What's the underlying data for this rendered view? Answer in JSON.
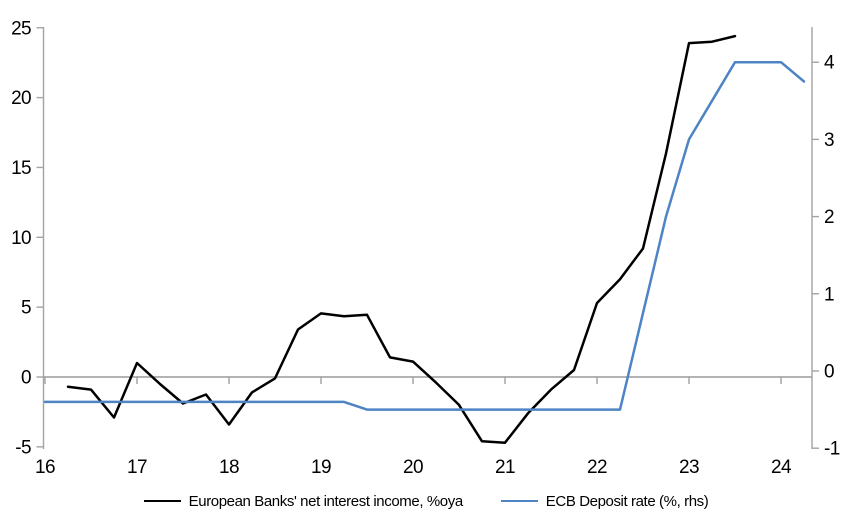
{
  "chart_data": {
    "type": "line",
    "title": "",
    "xlabel": "",
    "ylabel_left": "",
    "ylabel_right": "",
    "grid": "zero-line-only",
    "legend_position": "bottom-center",
    "background_color": "#ffffff",
    "x_axis": {
      "ticks": [
        16,
        17,
        18,
        19,
        20,
        21,
        22,
        23,
        24
      ],
      "labels": [
        "16",
        "17",
        "18",
        "19",
        "20",
        "21",
        "22",
        "23",
        "24"
      ],
      "range": [
        16,
        24.34
      ]
    },
    "left_axis": {
      "ticks": [
        -5,
        0,
        5,
        10,
        15,
        20,
        25
      ],
      "labels": [
        "-5",
        "0",
        "5",
        "10",
        "15",
        "20",
        "25"
      ],
      "range": [
        -5.15,
        25.05
      ]
    },
    "right_axis": {
      "ticks": [
        -1,
        0,
        1,
        2,
        3,
        4
      ],
      "labels": [
        "-1",
        "0",
        "1",
        "2",
        "3",
        "4"
      ],
      "range": [
        -1.01,
        4.46
      ]
    },
    "colors": {
      "axis": "#a3a3a3",
      "zero_line": "#9a9a9a",
      "text": "#000000"
    },
    "series": [
      {
        "name": "European Banks' net interest income, %oya",
        "axis": "left",
        "color": "#000000",
        "x": [
          16.25,
          16.5,
          16.75,
          17.0,
          17.25,
          17.5,
          17.75,
          18.0,
          18.25,
          18.5,
          18.75,
          19.0,
          19.25,
          19.5,
          19.75,
          20.0,
          20.25,
          20.5,
          20.75,
          21.0,
          21.25,
          21.5,
          21.75,
          22.0,
          22.25,
          22.5,
          22.75,
          23.0,
          23.25,
          23.5
        ],
        "values": [
          -0.7,
          -0.9,
          -2.9,
          1.0,
          -0.5,
          -1.9,
          -1.25,
          -3.4,
          -1.1,
          -0.1,
          3.4,
          4.55,
          4.35,
          4.45,
          1.4,
          1.1,
          -0.4,
          -2.0,
          -4.6,
          -4.7,
          -2.6,
          -0.9,
          0.5,
          5.3,
          7.0,
          9.2,
          16.0,
          23.9,
          24.0,
          24.4
        ]
      },
      {
        "name": "ECB Deposit rate (%, rhs)",
        "axis": "right",
        "color": "#4e84c4",
        "x": [
          16.0,
          16.25,
          16.5,
          16.75,
          17.0,
          17.25,
          17.5,
          17.75,
          18.0,
          18.25,
          18.5,
          18.75,
          19.0,
          19.25,
          19.5,
          19.75,
          20.0,
          20.25,
          20.5,
          20.75,
          21.0,
          21.25,
          21.5,
          21.75,
          22.0,
          22.25,
          22.5,
          22.75,
          23.0,
          23.25,
          23.5,
          23.75,
          24.0,
          24.25
        ],
        "values": [
          -0.4,
          -0.4,
          -0.4,
          -0.4,
          -0.4,
          -0.4,
          -0.4,
          -0.4,
          -0.4,
          -0.4,
          -0.4,
          -0.4,
          -0.4,
          -0.4,
          -0.5,
          -0.5,
          -0.5,
          -0.5,
          -0.5,
          -0.5,
          -0.5,
          -0.5,
          -0.5,
          -0.5,
          -0.5,
          -0.5,
          0.75,
          2.0,
          3.0,
          3.5,
          4.0,
          4.0,
          4.0,
          3.75
        ]
      }
    ]
  }
}
